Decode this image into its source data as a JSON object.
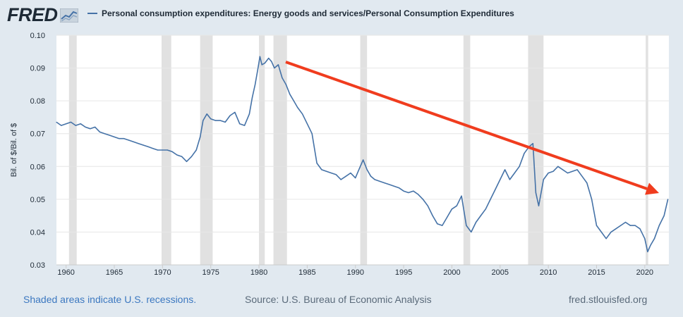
{
  "header": {
    "logo": "FRED",
    "legend_label": "Personal consumption expenditures: Energy goods and services/Personal Consumption Expenditures"
  },
  "footer": {
    "recessions_note": "Shaded areas indicate U.S. recessions.",
    "source": "Source: U.S. Bureau of Economic Analysis",
    "site": "fred.stlouisfed.org"
  },
  "colors": {
    "series": "#4572a7",
    "recession": "#e1e1e1",
    "arrow": "#f03c1e",
    "background": "#e1e9f0",
    "plot": "#ffffff"
  },
  "chart_data": {
    "type": "line",
    "ylabel": "Bil. of $/Bil. of $",
    "ylim": [
      0.03,
      0.1
    ],
    "yticks": [
      0.03,
      0.04,
      0.05,
      0.06,
      0.07,
      0.08,
      0.09,
      0.1
    ],
    "ytick_labels": [
      "0.03",
      "0.04",
      "0.05",
      "0.06",
      "0.07",
      "0.08",
      "0.09",
      "0.10"
    ],
    "xlim": [
      1959.0,
      2022.5
    ],
    "xticks": [
      1960,
      1965,
      1970,
      1975,
      1980,
      1985,
      1990,
      1995,
      2000,
      2005,
      2010,
      2015,
      2020
    ],
    "xtick_labels": [
      "1960",
      "1965",
      "1970",
      "1975",
      "1980",
      "1985",
      "1990",
      "1995",
      "2000",
      "2005",
      "2010",
      "2015",
      "2020"
    ],
    "grid": true,
    "recessions": [
      [
        1960.3,
        1961.1
      ],
      [
        1969.9,
        1970.9
      ],
      [
        1973.9,
        1975.2
      ],
      [
        1980.0,
        1980.6
      ],
      [
        1981.5,
        1982.9
      ],
      [
        1990.5,
        1991.2
      ],
      [
        2001.2,
        2001.9
      ],
      [
        2007.9,
        2009.5
      ],
      [
        2020.1,
        2020.35
      ]
    ],
    "series": [
      {
        "x": [
          1959.0,
          1959.5,
          1960.0,
          1960.5,
          1961.0,
          1961.5,
          1962.0,
          1962.5,
          1963.0,
          1963.5,
          1964.0,
          1964.5,
          1965.0,
          1965.5,
          1966.0,
          1966.5,
          1967.0,
          1967.5,
          1968.0,
          1968.5,
          1969.0,
          1969.5,
          1970.0,
          1970.5,
          1971.0,
          1971.5,
          1972.0,
          1972.5,
          1973.0,
          1973.5,
          1973.9,
          1974.2,
          1974.6,
          1975.0,
          1975.5,
          1976.0,
          1976.5,
          1977.0,
          1977.5,
          1978.0,
          1978.5,
          1979.0,
          1979.3,
          1979.6,
          1979.9,
          1980.1,
          1980.3,
          1980.6,
          1981.0,
          1981.3,
          1981.6,
          1982.0,
          1982.4,
          1982.8,
          1983.2,
          1983.6,
          1984.0,
          1984.5,
          1985.0,
          1985.5,
          1986.0,
          1986.5,
          1987.0,
          1987.5,
          1988.0,
          1988.5,
          1989.0,
          1989.5,
          1990.0,
          1990.5,
          1990.8,
          1991.2,
          1991.6,
          1992.0,
          1992.5,
          1993.0,
          1993.5,
          1994.0,
          1994.5,
          1995.0,
          1995.5,
          1996.0,
          1996.5,
          1997.0,
          1997.5,
          1998.0,
          1998.5,
          1999.0,
          1999.5,
          2000.0,
          2000.5,
          2001.0,
          2001.5,
          2002.0,
          2002.5,
          2003.0,
          2003.5,
          2004.0,
          2004.5,
          2005.0,
          2005.5,
          2006.0,
          2006.5,
          2007.0,
          2007.5,
          2008.0,
          2008.4,
          2008.7,
          2009.0,
          2009.5,
          2010.0,
          2010.5,
          2011.0,
          2011.5,
          2012.0,
          2012.5,
          2013.0,
          2013.5,
          2014.0,
          2014.5,
          2015.0,
          2015.5,
          2016.0,
          2016.5,
          2017.0,
          2017.5,
          2018.0,
          2018.5,
          2019.0,
          2019.5,
          2020.0,
          2020.3,
          2020.6,
          2021.0,
          2021.5,
          2022.0,
          2022.4
        ],
        "y": [
          0.0735,
          0.0725,
          0.073,
          0.0735,
          0.0725,
          0.073,
          0.072,
          0.0715,
          0.072,
          0.0705,
          0.07,
          0.0695,
          0.069,
          0.0685,
          0.0685,
          0.068,
          0.0675,
          0.067,
          0.0665,
          0.066,
          0.0655,
          0.065,
          0.065,
          0.065,
          0.0645,
          0.0635,
          0.063,
          0.0615,
          0.063,
          0.065,
          0.069,
          0.074,
          0.076,
          0.0745,
          0.074,
          0.074,
          0.0735,
          0.0755,
          0.0765,
          0.073,
          0.0725,
          0.076,
          0.081,
          0.085,
          0.09,
          0.0935,
          0.091,
          0.0915,
          0.093,
          0.092,
          0.09,
          0.091,
          0.087,
          0.085,
          0.082,
          0.08,
          0.078,
          0.076,
          0.073,
          0.07,
          0.061,
          0.059,
          0.0585,
          0.058,
          0.0575,
          0.056,
          0.057,
          0.058,
          0.0565,
          0.06,
          0.062,
          0.059,
          0.057,
          0.056,
          0.0555,
          0.055,
          0.0545,
          0.054,
          0.0535,
          0.0525,
          0.052,
          0.0525,
          0.0515,
          0.05,
          0.048,
          0.045,
          0.0425,
          0.042,
          0.0445,
          0.047,
          0.048,
          0.051,
          0.042,
          0.04,
          0.043,
          0.045,
          0.047,
          0.05,
          0.053,
          0.056,
          0.059,
          0.056,
          0.058,
          0.06,
          0.064,
          0.066,
          0.067,
          0.052,
          0.048,
          0.056,
          0.058,
          0.0585,
          0.06,
          0.059,
          0.058,
          0.0585,
          0.059,
          0.057,
          0.055,
          0.05,
          0.042,
          0.04,
          0.038,
          0.04,
          0.041,
          0.042,
          0.043,
          0.042,
          0.042,
          0.041,
          0.038,
          0.034,
          0.036,
          0.038,
          0.042,
          0.045,
          0.05
        ]
      }
    ]
  }
}
